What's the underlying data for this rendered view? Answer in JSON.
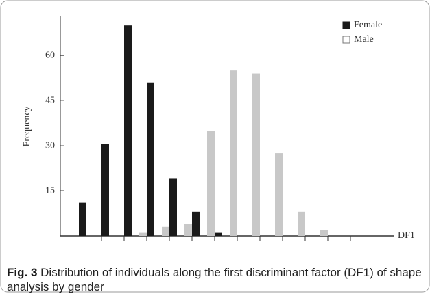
{
  "chart_data": {
    "type": "bar",
    "y_label": "Frequency",
    "x_label": "DF1",
    "categories": [
      null,
      null,
      null,
      null,
      null,
      null,
      null,
      null,
      null,
      null,
      null,
      null
    ],
    "series": [
      {
        "name": "Female",
        "color": "#1a1a1a",
        "values": [
          11,
          30.5,
          70,
          51,
          19,
          8,
          1,
          null,
          null,
          null,
          null,
          null
        ]
      },
      {
        "name": "Male",
        "color": "#c8c8c8",
        "values": [
          null,
          null,
          1,
          3,
          4,
          35,
          55,
          54,
          27.5,
          8,
          2,
          null
        ]
      }
    ],
    "ylim": [
      0,
      73
    ],
    "yticks": [
      15,
      30,
      45,
      60
    ],
    "grid": false
  },
  "caption": {
    "label": "Fig. 3",
    "text": "Distribution of individuals along the first discriminant factor (DF1) of shape analysis by gender"
  }
}
